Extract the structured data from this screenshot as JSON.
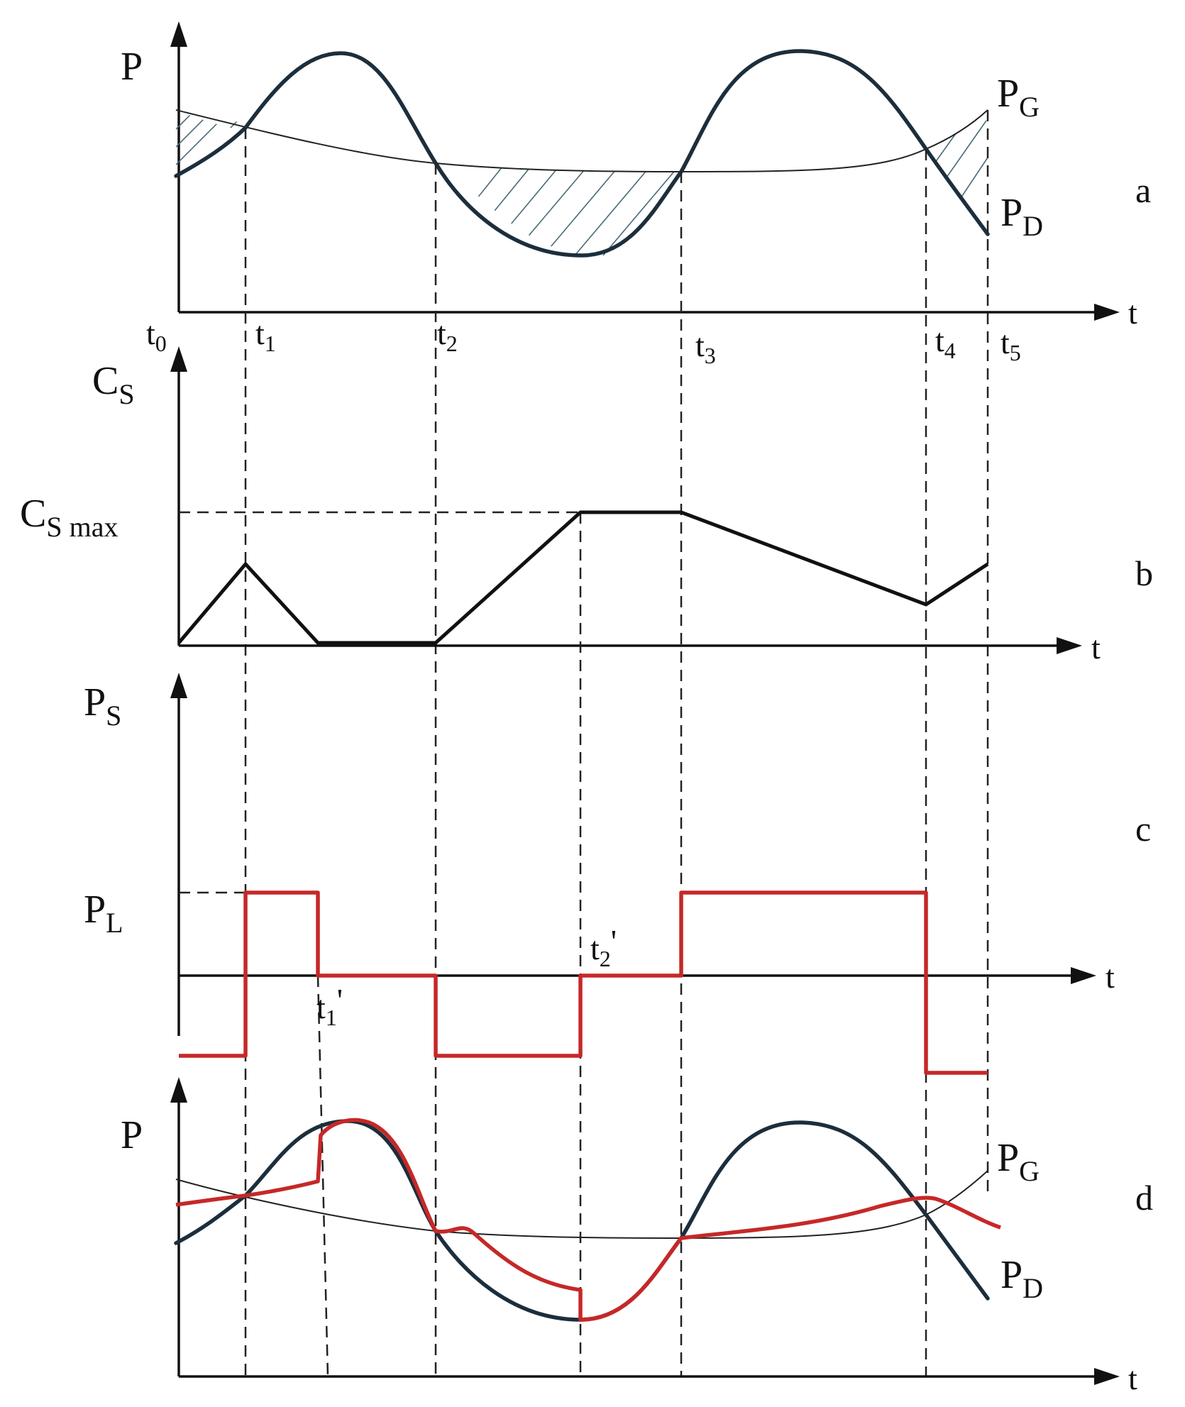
{
  "panel_a": {
    "y_label": "P",
    "x_label": "t",
    "curve_g": {
      "main": "P",
      "sub": "G"
    },
    "curve_d": {
      "main": "P",
      "sub": "D"
    },
    "panel_letter": "a",
    "ticks": [
      {
        "main": "t",
        "sub": "0"
      },
      {
        "main": "t",
        "sub": "1"
      },
      {
        "main": "t",
        "sub": "2"
      },
      {
        "main": "t",
        "sub": "3"
      },
      {
        "main": "t",
        "sub": "4"
      },
      {
        "main": "t",
        "sub": "5"
      }
    ]
  },
  "panel_b": {
    "y_label": {
      "main": "C",
      "sub": "S"
    },
    "level_label": {
      "main": "C",
      "sub": "S max"
    },
    "x_label": "t",
    "panel_letter": "b"
  },
  "panel_c": {
    "y_label": {
      "main": "P",
      "sub": "S"
    },
    "level_label": {
      "main": "P",
      "sub": "L"
    },
    "x_label": "t",
    "panel_letter": "c",
    "ticks": [
      {
        "main": "t",
        "sub": "1",
        "prime": "'"
      },
      {
        "main": "t",
        "sub": "2",
        "prime": "'"
      }
    ]
  },
  "panel_d": {
    "y_label": "P",
    "x_label": "t",
    "curve_g": {
      "main": "P",
      "sub": "G"
    },
    "curve_d": {
      "main": "P",
      "sub": "D"
    },
    "panel_letter": "d"
  },
  "colors": {
    "demand_curve": "#1c2e3c",
    "generation_curve": "#222222",
    "storage_curve": "#111111",
    "storage_power": "#c62828",
    "resulting_curve": "#c62828"
  }
}
